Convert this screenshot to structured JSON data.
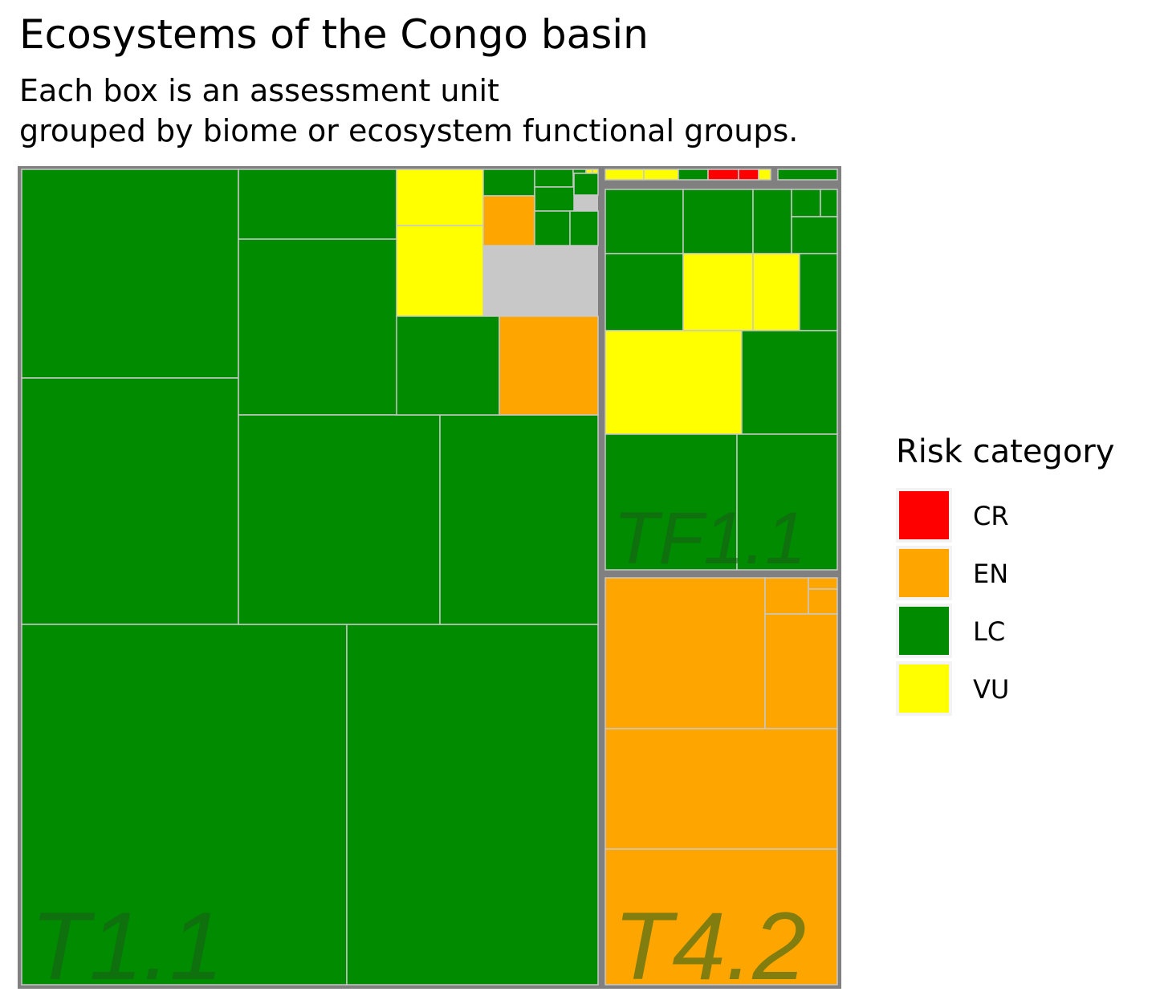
{
  "chart_data": {
    "type": "treemap",
    "title": "Ecosystems of the Congo basin",
    "subtitle": "Each box is an assessment unit\ngrouped by biome or ecosystem functional groups.",
    "legend_title": "Risk category",
    "legend_position": "right",
    "categories": [
      "CR",
      "EN",
      "LC",
      "VU"
    ],
    "colors": {
      "CR": "#ff0000",
      "EN": "#ffa500",
      "LC": "#008b00",
      "VU": "#ffff00",
      "border": "#808080",
      "label": "#1a5c1a"
    },
    "groups": [
      {
        "name": "T1.1",
        "units": [
          {
            "category": "LC",
            "area": 69
          },
          {
            "category": "LC",
            "area": 82
          },
          {
            "category": "LC",
            "area": 131
          },
          {
            "category": "LC",
            "area": 23
          },
          {
            "category": "LC",
            "area": 42
          },
          {
            "category": "LC",
            "area": 65
          },
          {
            "category": "LC",
            "area": 51
          },
          {
            "category": "LC",
            "area": 7
          },
          {
            "category": "VU",
            "area": 12
          },
          {
            "category": "VU",
            "area": 16
          },
          {
            "category": "LC",
            "area": 15
          },
          {
            "category": "EN",
            "area": 2.0
          },
          {
            "category": "LC",
            "area": 1.2
          },
          {
            "category": "LC",
            "area": 0.35
          },
          {
            "category": "LC",
            "area": 0.2
          },
          {
            "category": "VU",
            "area": 0.1
          },
          {
            "category": "VU",
            "area": 1.5
          },
          {
            "category": "LC",
            "area": 2.5
          },
          {
            "category": "LC",
            "area": 1.6
          },
          {
            "category": "EN",
            "area": 1.2
          },
          {
            "category": "LC",
            "area": 6
          },
          {
            "category": "LC",
            "area": 4.3
          }
        ]
      },
      {
        "name": "TF1.1",
        "units": [
          {
            "category": "LC",
            "area": 7.7
          },
          {
            "category": "LC",
            "area": 7.0
          },
          {
            "category": "LC",
            "area": 3.7
          },
          {
            "category": "LC",
            "area": 1.0
          },
          {
            "category": "LC",
            "area": 0.5
          },
          {
            "category": "LC",
            "area": 2.4
          },
          {
            "category": "LC",
            "area": 7.4
          },
          {
            "category": "VU",
            "area": 7.0
          },
          {
            "category": "VU",
            "area": 4.6
          },
          {
            "category": "LC",
            "area": 3.6
          },
          {
            "category": "VU",
            "area": 18.0
          },
          {
            "category": "LC",
            "area": 12.0
          },
          {
            "category": "LC",
            "area": 14.0
          },
          {
            "category": "LC",
            "area": 10.0
          }
        ]
      },
      {
        "name": "T4.2",
        "units": [
          {
            "category": "EN",
            "area": 17.0
          },
          {
            "category": "EN",
            "area": 3.3
          },
          {
            "category": "EN",
            "area": 1.4
          },
          {
            "category": "EN",
            "area": 0.4
          },
          {
            "category": "EN",
            "area": 7.6
          },
          {
            "category": "EN",
            "area": 13.0
          },
          {
            "category": "EN",
            "area": 13.0
          }
        ]
      },
      {
        "name": "",
        "units": [
          {
            "category": "VU",
            "area": 0.5
          },
          {
            "category": "VU",
            "area": 0.45
          },
          {
            "category": "LC",
            "area": 0.35
          },
          {
            "category": "CR",
            "area": 0.38
          },
          {
            "category": "CR",
            "area": 0.25
          },
          {
            "category": "VU",
            "area": 0.12
          }
        ]
      },
      {
        "name": "",
        "units": [
          {
            "category": "LC",
            "area": 0.8
          }
        ]
      }
    ]
  }
}
